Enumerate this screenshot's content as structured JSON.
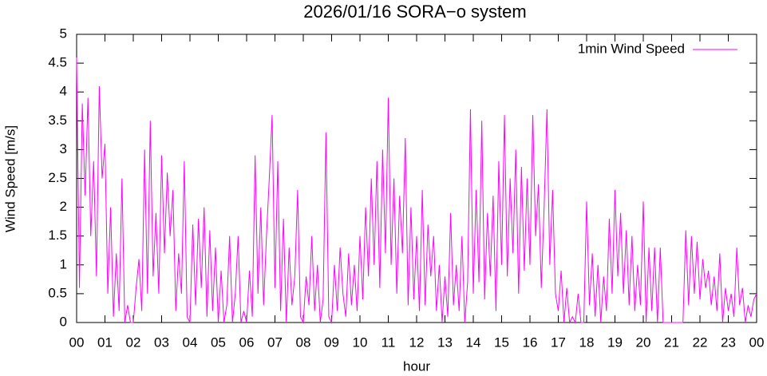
{
  "chart_data": {
    "type": "line",
    "title": "2026/01/16 SORA−o system",
    "xlabel": "hour",
    "ylabel": "Wind Speed [m/s]",
    "xlim": [
      0,
      24
    ],
    "ylim": [
      0,
      5
    ],
    "xticks": [
      {
        "value": 0,
        "label": "00"
      },
      {
        "value": 1,
        "label": "01"
      },
      {
        "value": 2,
        "label": "02"
      },
      {
        "value": 3,
        "label": "03"
      },
      {
        "value": 4,
        "label": "04"
      },
      {
        "value": 5,
        "label": "05"
      },
      {
        "value": 6,
        "label": "06"
      },
      {
        "value": 7,
        "label": "07"
      },
      {
        "value": 8,
        "label": "08"
      },
      {
        "value": 9,
        "label": "09"
      },
      {
        "value": 10,
        "label": "10"
      },
      {
        "value": 11,
        "label": "11"
      },
      {
        "value": 12,
        "label": "12"
      },
      {
        "value": 13,
        "label": "13"
      },
      {
        "value": 14,
        "label": "14"
      },
      {
        "value": 15,
        "label": "15"
      },
      {
        "value": 16,
        "label": "16"
      },
      {
        "value": 17,
        "label": "17"
      },
      {
        "value": 18,
        "label": "18"
      },
      {
        "value": 19,
        "label": "19"
      },
      {
        "value": 20,
        "label": "20"
      },
      {
        "value": 21,
        "label": "21"
      },
      {
        "value": 22,
        "label": "22"
      },
      {
        "value": 23,
        "label": "23"
      },
      {
        "value": 24,
        "label": "00"
      }
    ],
    "yticks": [
      0,
      0.5,
      1,
      1.5,
      2,
      2.5,
      3,
      3.5,
      4,
      4.5,
      5
    ],
    "legend": "top-right",
    "x": [
      0,
      0.1,
      0.2,
      0.3,
      0.4,
      0.5,
      0.6,
      0.7,
      0.8,
      0.9,
      1,
      1.1,
      1.2,
      1.3,
      1.4,
      1.5,
      1.6,
      1.7,
      1.8,
      1.9,
      2,
      2.1,
      2.2,
      2.3,
      2.4,
      2.5,
      2.6,
      2.7,
      2.8,
      2.9,
      3,
      3.1,
      3.2,
      3.3,
      3.4,
      3.5,
      3.6,
      3.7,
      3.8,
      3.9,
      4,
      4.1,
      4.2,
      4.3,
      4.4,
      4.5,
      4.6,
      4.7,
      4.8,
      4.9,
      5,
      5.1,
      5.2,
      5.3,
      5.4,
      5.5,
      5.6,
      5.7,
      5.8,
      5.9,
      6,
      6.1,
      6.2,
      6.3,
      6.4,
      6.5,
      6.6,
      6.7,
      6.8,
      6.9,
      7,
      7.1,
      7.2,
      7.3,
      7.4,
      7.5,
      7.6,
      7.7,
      7.8,
      7.9,
      8,
      8.1,
      8.2,
      8.3,
      8.4,
      8.5,
      8.6,
      8.7,
      8.8,
      8.9,
      9,
      9.1,
      9.2,
      9.3,
      9.4,
      9.5,
      9.6,
      9.7,
      9.8,
      9.9,
      10,
      10.1,
      10.2,
      10.3,
      10.4,
      10.5,
      10.6,
      10.7,
      10.8,
      10.9,
      11,
      11.1,
      11.2,
      11.3,
      11.4,
      11.5,
      11.6,
      11.7,
      11.8,
      11.9,
      12,
      12.1,
      12.2,
      12.3,
      12.4,
      12.5,
      12.6,
      12.7,
      12.8,
      12.9,
      13,
      13.1,
      13.2,
      13.3,
      13.4,
      13.5,
      13.6,
      13.7,
      13.8,
      13.9,
      14,
      14.1,
      14.2,
      14.3,
      14.4,
      14.5,
      14.6,
      14.7,
      14.8,
      14.9,
      15,
      15.1,
      15.2,
      15.3,
      15.4,
      15.5,
      15.6,
      15.7,
      15.8,
      15.9,
      16,
      16.1,
      16.2,
      16.3,
      16.4,
      16.5,
      16.6,
      16.7,
      16.8,
      16.9,
      17,
      17.1,
      17.2,
      17.3,
      17.4,
      17.5,
      17.6,
      17.7,
      17.8,
      17.9,
      18,
      18.1,
      18.2,
      18.3,
      18.4,
      18.5,
      18.6,
      18.7,
      18.8,
      18.9,
      19,
      19.1,
      19.2,
      19.3,
      19.4,
      19.5,
      19.6,
      19.7,
      19.8,
      19.9,
      20,
      20.1,
      20.2,
      20.3,
      20.4,
      20.5,
      20.6,
      20.7,
      20.8,
      20.9,
      21,
      21.1,
      21.2,
      21.3,
      21.4,
      21.5,
      21.6,
      21.7,
      21.8,
      21.9,
      22,
      22.1,
      22.2,
      22.3,
      22.4,
      22.5,
      22.6,
      22.7,
      22.8,
      22.9,
      23,
      23.1,
      23.2,
      23.3,
      23.4,
      23.5,
      23.6,
      23.7,
      23.8,
      23.9,
      24
    ],
    "series": [
      {
        "name": "1min Wind Speed",
        "color": "#ff00ff",
        "values": [
          4.6,
          0.6,
          3.8,
          2.2,
          3.9,
          1.5,
          2.8,
          0.8,
          4.1,
          2.5,
          3.1,
          0.5,
          2.0,
          0.1,
          1.2,
          0.2,
          2.5,
          0.0,
          0.3,
          0.0,
          0.0,
          0.6,
          1.1,
          0.2,
          3.0,
          0.5,
          3.5,
          0.8,
          1.9,
          0.5,
          2.9,
          1.2,
          2.6,
          1.5,
          2.3,
          0.2,
          1.2,
          0.5,
          2.8,
          0.1,
          0.0,
          1.7,
          0.3,
          1.8,
          0.6,
          2.0,
          0.1,
          1.6,
          0.2,
          1.3,
          0.0,
          0.9,
          0.0,
          0.3,
          1.5,
          0.0,
          0.5,
          1.5,
          0.0,
          0.2,
          0.0,
          0.9,
          0.1,
          2.9,
          0.5,
          2.0,
          0.3,
          1.5,
          2.5,
          3.6,
          0.6,
          2.8,
          0.2,
          1.8,
          0.0,
          1.3,
          0.3,
          0.8,
          2.3,
          0.1,
          0.0,
          0.8,
          0.3,
          1.5,
          0.2,
          1.0,
          0.0,
          0.4,
          3.3,
          0.1,
          0.0,
          1.0,
          0.2,
          1.3,
          0.5,
          0.1,
          1.2,
          0.3,
          1.0,
          0.2,
          1.5,
          0.4,
          2.0,
          0.8,
          2.5,
          1.0,
          2.8,
          0.6,
          3.0,
          1.2,
          3.9,
          1.0,
          2.5,
          0.5,
          2.2,
          1.2,
          3.2,
          0.3,
          2.0,
          0.4,
          1.5,
          0.2,
          2.3,
          0.3,
          1.7,
          0.8,
          1.5,
          0.2,
          1.0,
          0.0,
          0.8,
          0.1,
          1.9,
          0.3,
          1.0,
          0.2,
          1.5,
          0.0,
          0.7,
          3.7,
          0.5,
          2.3,
          0.7,
          3.5,
          0.4,
          1.9,
          0.8,
          2.2,
          0.2,
          2.8,
          1.0,
          3.6,
          0.8,
          2.5,
          1.2,
          3.0,
          0.5,
          2.7,
          0.9,
          2.5,
          1.0,
          3.6,
          1.5,
          2.4,
          0.6,
          2.0,
          3.7,
          1.0,
          2.3,
          0.5,
          0.2,
          0.9,
          0.0,
          0.6,
          0.0,
          0.1,
          0.0,
          0.5,
          0.0,
          0.0,
          2.1,
          0.3,
          1.2,
          0.1,
          1.0,
          0.0,
          0.8,
          0.2,
          1.8,
          0.5,
          2.3,
          0.8,
          1.9,
          0.5,
          1.6,
          0.3,
          1.5,
          0.2,
          1.0,
          0.3,
          2.1,
          0.0,
          1.3,
          0.2,
          1.3,
          0.0,
          1.3,
          0.0,
          0.0,
          0.0,
          0.0,
          0.0,
          0.0,
          0.0,
          0.0,
          1.6,
          0.3,
          1.5,
          0.5,
          1.4,
          0.4,
          1.1,
          0.6,
          0.9,
          0.3,
          0.8,
          0.2,
          1.2,
          0.0,
          0.6,
          0.2,
          0.5,
          0.1,
          1.3,
          0.3,
          0.6,
          0.0,
          0.3,
          0.1,
          0.4,
          0.5
        ]
      }
    ]
  }
}
